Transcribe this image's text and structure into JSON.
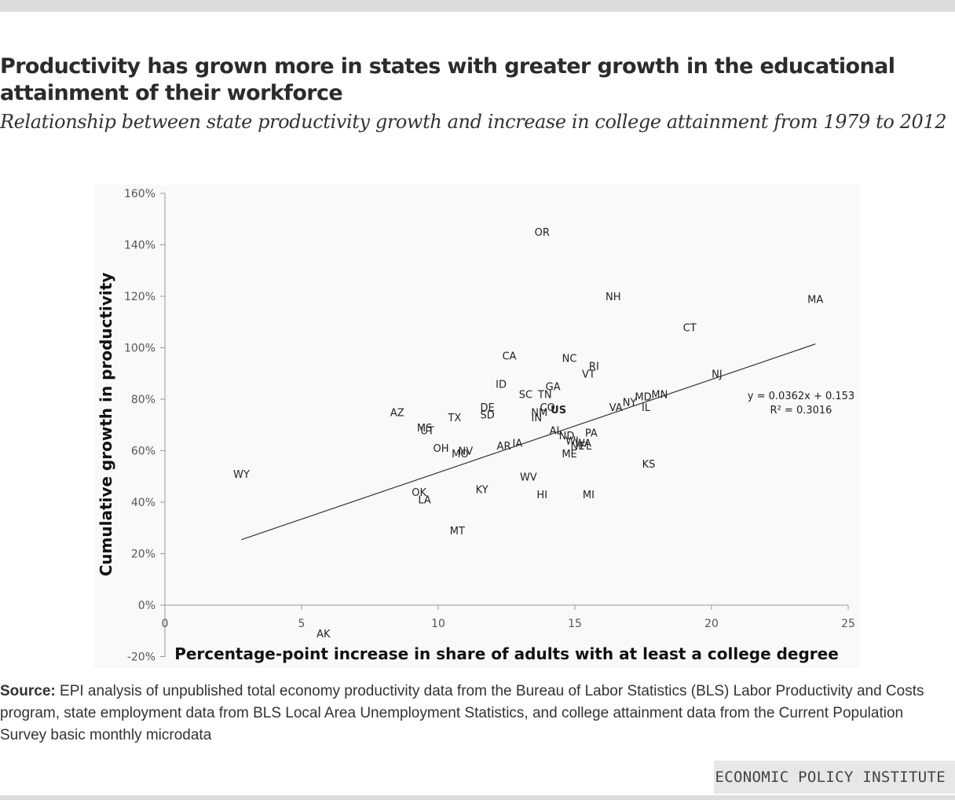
{
  "title": "Productivity has grown more in states with greater growth in the educational attainment of their workforce",
  "subtitle": "Relationship between state productivity growth and increase in college attainment from 1979 to 2012",
  "source_label": "Source:",
  "source_text": "EPI analysis of unpublished total economy productivity data from the Bureau of Labor Statistics (BLS) Labor Productivity and Costs program, state employment data from BLS Local Area Unemployment Statistics, and college attainment data from the Current Population Survey basic monthly microdata",
  "brand": "ECONOMIC POLICY INSTITUTE",
  "chart_data": {
    "type": "scatter",
    "xlabel": "Percentage-point increase in share of adults with at least a college degree",
    "ylabel": "Cumulative growth in productivity",
    "xlim": [
      0,
      25
    ],
    "ylim": [
      -20,
      160
    ],
    "x_ticks": [
      0,
      5,
      10,
      15,
      20,
      25
    ],
    "x_tick_labels": [
      "0",
      "5",
      "10",
      "15",
      "20",
      "25"
    ],
    "y_ticks": [
      -20,
      0,
      20,
      40,
      60,
      80,
      100,
      120,
      140,
      160
    ],
    "y_tick_labels": [
      "-20%",
      "0%",
      "20%",
      "40%",
      "60%",
      "80%",
      "100%",
      "120%",
      "140%",
      "160%"
    ],
    "grid": false,
    "trendline": {
      "equation": "y = 0.0362x + 0.153",
      "r_squared": "R² = 0.3016",
      "slope": 3.62,
      "intercept": 15.3,
      "x_range": [
        2.8,
        23.8
      ]
    },
    "points": [
      {
        "label": "OR",
        "x": 13.8,
        "y": 145
      },
      {
        "label": "NH",
        "x": 16.4,
        "y": 120
      },
      {
        "label": "MA",
        "x": 23.8,
        "y": 119
      },
      {
        "label": "CT",
        "x": 19.2,
        "y": 108
      },
      {
        "label": "CA",
        "x": 12.6,
        "y": 97
      },
      {
        "label": "NC",
        "x": 14.8,
        "y": 96
      },
      {
        "label": "RI",
        "x": 15.7,
        "y": 93
      },
      {
        "label": "VT",
        "x": 15.5,
        "y": 90
      },
      {
        "label": "NJ",
        "x": 20.2,
        "y": 90
      },
      {
        "label": "ID",
        "x": 12.3,
        "y": 86
      },
      {
        "label": "GA",
        "x": 14.2,
        "y": 85
      },
      {
        "label": "SC",
        "x": 13.2,
        "y": 82
      },
      {
        "label": "TN",
        "x": 13.9,
        "y": 82
      },
      {
        "label": "MN",
        "x": 18.1,
        "y": 82
      },
      {
        "label": "MD",
        "x": 17.5,
        "y": 81
      },
      {
        "label": "NY",
        "x": 17.0,
        "y": 79
      },
      {
        "label": "IL",
        "x": 17.6,
        "y": 77
      },
      {
        "label": "VA",
        "x": 16.5,
        "y": 77
      },
      {
        "label": "CO",
        "x": 14.0,
        "y": 77
      },
      {
        "label": "US",
        "x": 14.4,
        "y": 76
      },
      {
        "label": "NM",
        "x": 13.7,
        "y": 75
      },
      {
        "label": "IN",
        "x": 13.6,
        "y": 73
      },
      {
        "label": "DE",
        "x": 11.8,
        "y": 77
      },
      {
        "label": "SD",
        "x": 11.8,
        "y": 74
      },
      {
        "label": "AZ",
        "x": 8.5,
        "y": 75
      },
      {
        "label": "TX",
        "x": 10.6,
        "y": 73
      },
      {
        "label": "MS",
        "x": 9.5,
        "y": 69
      },
      {
        "label": "UT",
        "x": 9.6,
        "y": 68
      },
      {
        "label": "AL",
        "x": 14.3,
        "y": 68
      },
      {
        "label": "PA",
        "x": 15.6,
        "y": 67
      },
      {
        "label": "ND",
        "x": 14.7,
        "y": 66
      },
      {
        "label": "WI",
        "x": 14.9,
        "y": 64
      },
      {
        "label": "WA",
        "x": 15.3,
        "y": 63
      },
      {
        "label": "NE",
        "x": 15.1,
        "y": 62
      },
      {
        "label": "FL",
        "x": 15.4,
        "y": 62
      },
      {
        "label": "ME",
        "x": 14.8,
        "y": 59
      },
      {
        "label": "IA",
        "x": 12.9,
        "y": 63
      },
      {
        "label": "AR",
        "x": 12.4,
        "y": 62
      },
      {
        "label": "OH",
        "x": 10.1,
        "y": 61
      },
      {
        "label": "NV",
        "x": 11.0,
        "y": 60
      },
      {
        "label": "MO",
        "x": 10.8,
        "y": 59
      },
      {
        "label": "KS",
        "x": 17.7,
        "y": 55
      },
      {
        "label": "WY",
        "x": 2.8,
        "y": 51
      },
      {
        "label": "WV",
        "x": 13.3,
        "y": 50
      },
      {
        "label": "KY",
        "x": 11.6,
        "y": 45
      },
      {
        "label": "OK",
        "x": 9.3,
        "y": 44
      },
      {
        "label": "LA",
        "x": 9.5,
        "y": 41
      },
      {
        "label": "HI",
        "x": 13.8,
        "y": 43
      },
      {
        "label": "MI",
        "x": 15.5,
        "y": 43
      },
      {
        "label": "MT",
        "x": 10.7,
        "y": 29
      },
      {
        "label": "AK",
        "x": 5.8,
        "y": -11
      }
    ]
  }
}
